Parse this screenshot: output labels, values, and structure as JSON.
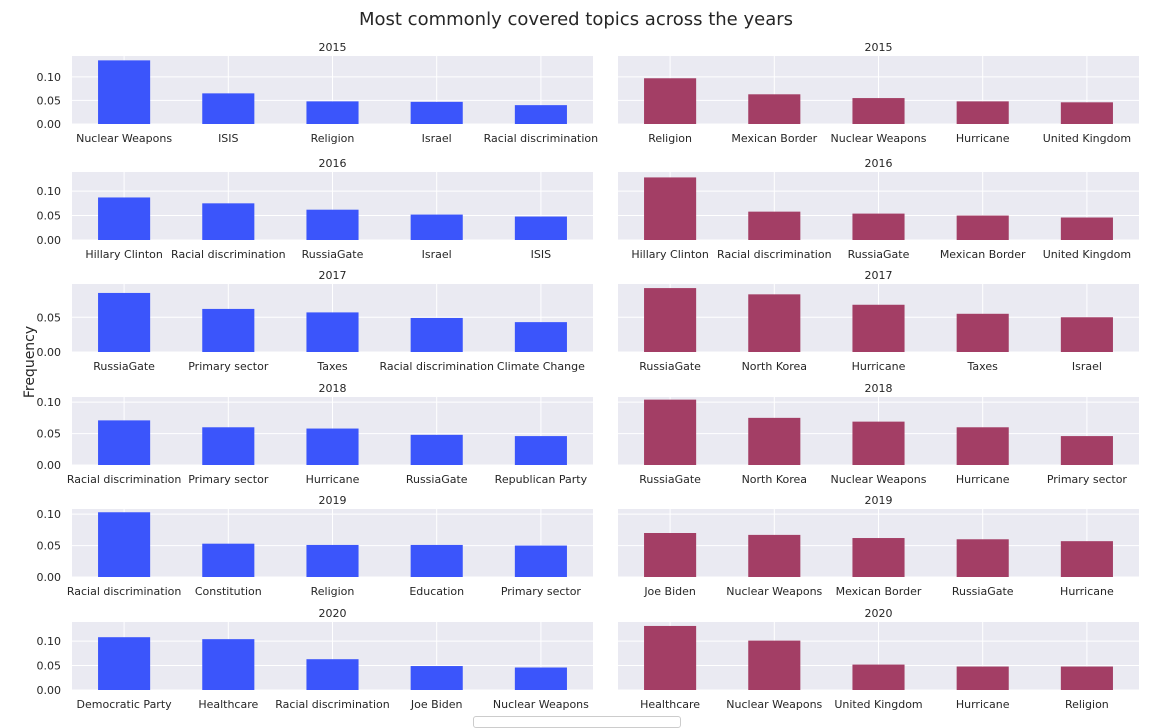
{
  "title": "Most commonly covered topics across the years",
  "ylabel": "Frequency",
  "colors": {
    "left": "#3b55fb",
    "right": "#a33e65",
    "panel_bg": "#eaeaf2",
    "grid": "#ffffff",
    "text": "#262626"
  },
  "chart_data": [
    {
      "type": "bar",
      "title": "2015",
      "column": "left",
      "ylim": [
        0,
        0.14
      ],
      "yticks": [
        "0.00",
        "0.05",
        "0.10"
      ],
      "categories": [
        "Nuclear Weapons",
        "ISIS",
        "Religion",
        "Israel",
        "Racial discrimination"
      ],
      "values": [
        0.135,
        0.065,
        0.048,
        0.047,
        0.04
      ]
    },
    {
      "type": "bar",
      "title": "2015",
      "column": "right",
      "ylim": [
        0,
        0.14
      ],
      "yticks": [],
      "categories": [
        "Religion",
        "Mexican Border",
        "Nuclear Weapons",
        "Hurricane",
        "United Kingdom"
      ],
      "values": [
        0.097,
        0.063,
        0.055,
        0.048,
        0.046
      ]
    },
    {
      "type": "bar",
      "title": "2016",
      "column": "left",
      "ylim": [
        0,
        0.135
      ],
      "yticks": [
        "0.00",
        "0.05",
        "0.10"
      ],
      "categories": [
        "Hillary Clinton",
        "Racial discrimination",
        "RussiaGate",
        "Israel",
        "ISIS"
      ],
      "values": [
        0.087,
        0.075,
        0.062,
        0.052,
        0.048
      ]
    },
    {
      "type": "bar",
      "title": "2016",
      "column": "right",
      "ylim": [
        0,
        0.135
      ],
      "yticks": [],
      "categories": [
        "Hillary Clinton",
        "Racial discrimination",
        "RussiaGate",
        "Mexican Border",
        "United Kingdom"
      ],
      "values": [
        0.128,
        0.058,
        0.054,
        0.05,
        0.046
      ]
    },
    {
      "type": "bar",
      "title": "2017",
      "column": "left",
      "ylim": [
        0,
        0.095
      ],
      "yticks": [
        "0.00",
        "0.05"
      ],
      "categories": [
        "RussiaGate",
        "Primary sector",
        "Taxes",
        "Racial discrimination",
        "Climate Change"
      ],
      "values": [
        0.085,
        0.062,
        0.057,
        0.049,
        0.043
      ]
    },
    {
      "type": "bar",
      "title": "2017",
      "column": "right",
      "ylim": [
        0,
        0.095
      ],
      "yticks": [],
      "categories": [
        "RussiaGate",
        "North Korea",
        "Hurricane",
        "Taxes",
        "Israel"
      ],
      "values": [
        0.092,
        0.083,
        0.068,
        0.055,
        0.05
      ]
    },
    {
      "type": "bar",
      "title": "2018",
      "column": "left",
      "ylim": [
        0,
        0.105
      ],
      "yticks": [
        "0.00",
        "0.05",
        "0.10"
      ],
      "categories": [
        "Racial discrimination",
        "Primary sector",
        "Hurricane",
        "RussiaGate",
        "Republican Party"
      ],
      "values": [
        0.071,
        0.06,
        0.058,
        0.048,
        0.046
      ]
    },
    {
      "type": "bar",
      "title": "2018",
      "column": "right",
      "ylim": [
        0,
        0.105
      ],
      "yticks": [],
      "categories": [
        "RussiaGate",
        "North Korea",
        "Nuclear Weapons",
        "Hurricane",
        "Primary sector"
      ],
      "values": [
        0.104,
        0.075,
        0.069,
        0.06,
        0.046
      ]
    },
    {
      "type": "bar",
      "title": "2019",
      "column": "left",
      "ylim": [
        0,
        0.105
      ],
      "yticks": [
        "0.00",
        "0.05",
        "0.10"
      ],
      "categories": [
        "Racial discrimination",
        "Constitution",
        "Religion",
        "Education",
        "Primary sector"
      ],
      "values": [
        0.103,
        0.053,
        0.051,
        0.051,
        0.05
      ]
    },
    {
      "type": "bar",
      "title": "2019",
      "column": "right",
      "ylim": [
        0,
        0.105
      ],
      "yticks": [],
      "categories": [
        "Joe Biden",
        "Nuclear Weapons",
        "Mexican Border",
        "RussiaGate",
        "Hurricane"
      ],
      "values": [
        0.07,
        0.067,
        0.062,
        0.06,
        0.057
      ]
    },
    {
      "type": "bar",
      "title": "2020",
      "column": "left",
      "ylim": [
        0,
        0.135
      ],
      "yticks": [
        "0.00",
        "0.05",
        "0.10"
      ],
      "categories": [
        "Democratic Party",
        "Healthcare",
        "Racial discrimination",
        "Joe Biden",
        "Nuclear Weapons"
      ],
      "values": [
        0.108,
        0.104,
        0.063,
        0.049,
        0.046
      ]
    },
    {
      "type": "bar",
      "title": "2020",
      "column": "right",
      "ylim": [
        0,
        0.135
      ],
      "yticks": [],
      "categories": [
        "Healthcare",
        "Nuclear Weapons",
        "United Kingdom",
        "Hurricane",
        "Religion"
      ],
      "values": [
        0.131,
        0.101,
        0.052,
        0.048,
        0.048
      ]
    }
  ]
}
